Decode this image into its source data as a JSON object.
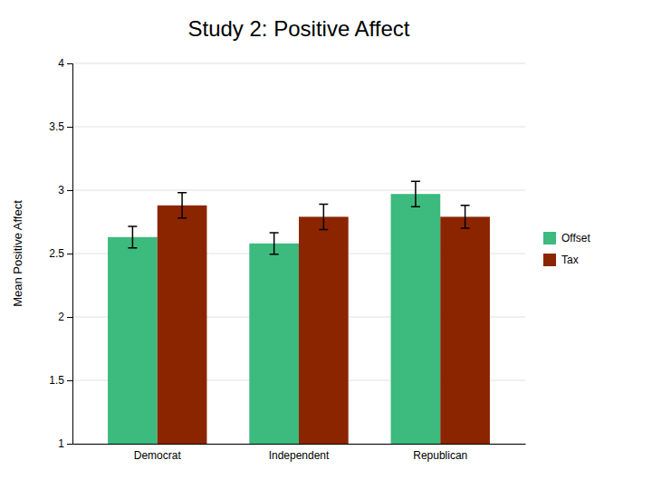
{
  "chart_data": {
    "type": "bar",
    "title": "Study 2: Positive Affect",
    "ylabel": "Mean Positive Affect",
    "categories": [
      "Democrat",
      "Independent",
      "Republican"
    ],
    "series": [
      {
        "name": "Offset",
        "color": "#3dba7e",
        "values": [
          2.63,
          2.58,
          2.97
        ],
        "errors": [
          0.085,
          0.085,
          0.1
        ]
      },
      {
        "name": "Tax",
        "color": "#8b2500",
        "values": [
          2.88,
          2.79,
          2.79
        ],
        "errors": [
          0.1,
          0.1,
          0.09
        ]
      }
    ],
    "ylim": [
      1,
      4
    ],
    "yticks": [
      1,
      1.5,
      2,
      2.5,
      3,
      3.5,
      4
    ],
    "grid": true,
    "legend": "right"
  }
}
